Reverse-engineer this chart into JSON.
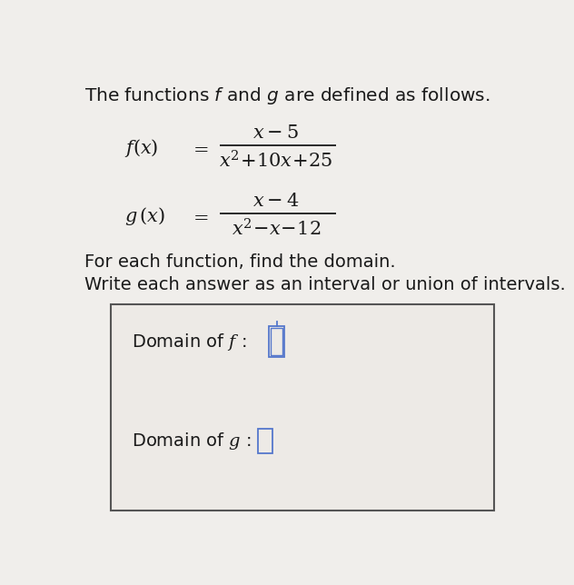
{
  "background_color": "#f0eeeb",
  "box_facecolor": "#edeae6",
  "title_text": "The functions $\\mathit{f}$ and $\\mathit{g}$ are defined as follows.",
  "f_label": "$f(x)$",
  "f_equals": "$=$",
  "f_numerator": "$x-5$",
  "f_denominator": "$x^{2}\\!+\\!10x\\!+\\!25$",
  "g_label": "$g\\,(x)$",
  "g_equals": "$=$",
  "g_numerator": "$x-4$",
  "g_denominator": "$x^{2}\\!-\\!x\\!-\\!12$",
  "instruction1": "For each function, find the domain.",
  "instruction2": "Write each answer as an interval or union of intervals.",
  "domain_f_label": "Domain of $f$ :",
  "domain_g_label": "Domain of $g$ :",
  "text_color": "#1a1a1a",
  "box_border_color": "#555555",
  "input_color": "#5577cc"
}
